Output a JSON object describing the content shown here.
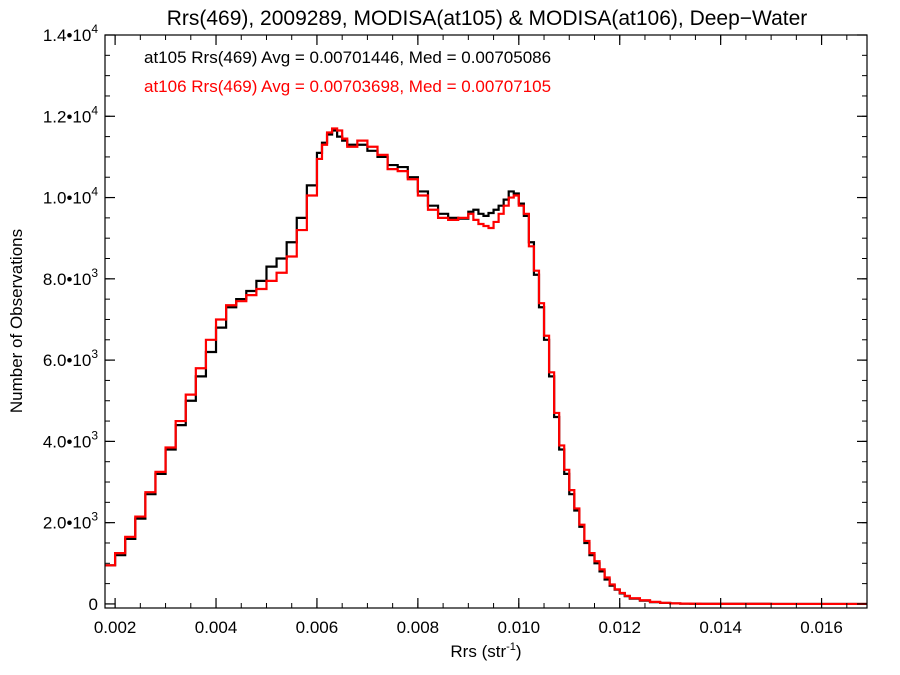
{
  "chart_data": {
    "type": "line",
    "step": true,
    "title": "Rrs(469), 2009289, MODISA(at105) & MODISA(at106), Deep−Water",
    "xlabel": "Rrs (str",
    "xlabel_sup": "-1",
    "xlabel_suffix": ")",
    "ylabel": "Number of Observations",
    "xlim": [
      0.0018,
      0.0169
    ],
    "ylim": [
      -100,
      14000
    ],
    "x_ticks": [
      {
        "value": 0.002,
        "label": "0.002"
      },
      {
        "value": 0.004,
        "label": "0.004"
      },
      {
        "value": 0.006,
        "label": "0.006"
      },
      {
        "value": 0.008,
        "label": "0.008"
      },
      {
        "value": 0.01,
        "label": "0.010"
      },
      {
        "value": 0.012,
        "label": "0.012"
      },
      {
        "value": 0.014,
        "label": "0.014"
      },
      {
        "value": 0.016,
        "label": "0.016"
      }
    ],
    "y_ticks": [
      {
        "value": 0,
        "mant": "0",
        "exp": ""
      },
      {
        "value": 2000,
        "mant": "2.0•10",
        "exp": "3"
      },
      {
        "value": 4000,
        "mant": "4.0•10",
        "exp": "3"
      },
      {
        "value": 6000,
        "mant": "6.0•10",
        "exp": "3"
      },
      {
        "value": 8000,
        "mant": "8.0•10",
        "exp": "3"
      },
      {
        "value": 10000,
        "mant": "1.0•10",
        "exp": "4"
      },
      {
        "value": 12000,
        "mant": "1.2•10",
        "exp": "4"
      },
      {
        "value": 14000,
        "mant": "1.4•10",
        "exp": "4"
      }
    ],
    "x_minor_step": 0.0005,
    "y_minor_step": 500,
    "annotations": [
      {
        "text": "at105 Rrs(469) Avg = 0.00701446, Med = 0.00705086",
        "color": "#000000"
      },
      {
        "text": "at106 Rrs(469) Avg = 0.00703698, Med = 0.00707105",
        "color": "#ff0000"
      }
    ],
    "series": [
      {
        "color": "#000000",
        "x": [
          0.0018,
          0.002,
          0.0022,
          0.0024,
          0.0026,
          0.0028,
          0.003,
          0.0032,
          0.0034,
          0.0036,
          0.0038,
          0.004,
          0.0042,
          0.0044,
          0.0046,
          0.0048,
          0.005,
          0.0052,
          0.0054,
          0.0056,
          0.0058,
          0.006,
          0.0061,
          0.0062,
          0.0063,
          0.0064,
          0.0065,
          0.0066,
          0.0068,
          0.007,
          0.0072,
          0.0074,
          0.0076,
          0.0078,
          0.008,
          0.0082,
          0.0084,
          0.0086,
          0.0088,
          0.009,
          0.0091,
          0.0092,
          0.0093,
          0.0094,
          0.0095,
          0.0096,
          0.0097,
          0.0098,
          0.0099,
          0.01,
          0.0101,
          0.0102,
          0.0103,
          0.0104,
          0.0105,
          0.0106,
          0.0107,
          0.0108,
          0.0109,
          0.011,
          0.0111,
          0.0112,
          0.0113,
          0.0114,
          0.0115,
          0.0116,
          0.0117,
          0.0118,
          0.0119,
          0.012,
          0.0121,
          0.0122,
          0.0124,
          0.0126,
          0.0128,
          0.013,
          0.0132,
          0.0134,
          0.0136,
          0.014,
          0.015,
          0.016,
          0.0169
        ],
        "values": [
          950,
          1200,
          1600,
          2100,
          2700,
          3200,
          3800,
          4400,
          5000,
          5600,
          6200,
          6800,
          7300,
          7500,
          7700,
          7950,
          8300,
          8500,
          8900,
          9500,
          10300,
          11100,
          11350,
          11550,
          11650,
          11500,
          11400,
          11300,
          11300,
          11150,
          11000,
          10800,
          10750,
          10500,
          10150,
          9800,
          9600,
          9500,
          9480,
          9650,
          9700,
          9600,
          9550,
          9620,
          9700,
          9800,
          9950,
          10150,
          10100,
          9850,
          9550,
          8900,
          8100,
          7300,
          6500,
          5600,
          4600,
          3800,
          3200,
          2700,
          2300,
          1900,
          1500,
          1200,
          1000,
          800,
          600,
          450,
          350,
          260,
          190,
          130,
          80,
          45,
          25,
          12,
          6,
          3,
          2,
          1,
          0,
          0,
          0
        ]
      },
      {
        "color": "#ff0000",
        "x": [
          0.0018,
          0.002,
          0.0022,
          0.0024,
          0.0026,
          0.0028,
          0.003,
          0.0032,
          0.0034,
          0.0036,
          0.0038,
          0.004,
          0.0042,
          0.0044,
          0.0046,
          0.0048,
          0.005,
          0.0052,
          0.0054,
          0.0056,
          0.0058,
          0.006,
          0.0061,
          0.0062,
          0.0063,
          0.0064,
          0.0065,
          0.0066,
          0.0068,
          0.007,
          0.0072,
          0.0074,
          0.0076,
          0.0078,
          0.008,
          0.0082,
          0.0084,
          0.0086,
          0.0088,
          0.009,
          0.0091,
          0.0092,
          0.0093,
          0.0094,
          0.0095,
          0.0096,
          0.0097,
          0.0098,
          0.0099,
          0.01,
          0.0101,
          0.0102,
          0.0103,
          0.0104,
          0.0105,
          0.0106,
          0.0107,
          0.0108,
          0.0109,
          0.011,
          0.0111,
          0.0112,
          0.0113,
          0.0114,
          0.0115,
          0.0116,
          0.0117,
          0.0118,
          0.0119,
          0.012,
          0.0121,
          0.0122,
          0.0124,
          0.0126,
          0.0128,
          0.013,
          0.0132,
          0.0134,
          0.0136,
          0.014,
          0.015,
          0.016,
          0.0169
        ],
        "values": [
          950,
          1250,
          1650,
          2150,
          2750,
          3250,
          3850,
          4500,
          5150,
          5800,
          6500,
          7000,
          7350,
          7450,
          7600,
          7750,
          7950,
          8150,
          8550,
          9200,
          10050,
          10950,
          11300,
          11600,
          11700,
          11650,
          11450,
          11250,
          11400,
          11250,
          11050,
          10700,
          10650,
          10450,
          10050,
          9700,
          9500,
          9450,
          9500,
          9600,
          9450,
          9350,
          9300,
          9250,
          9400,
          9600,
          9800,
          10000,
          10050,
          9800,
          9600,
          8800,
          8200,
          7400,
          6600,
          5700,
          4700,
          3900,
          3300,
          2800,
          2350,
          1950,
          1550,
          1250,
          1050,
          850,
          650,
          480,
          360,
          270,
          200,
          140,
          90,
          50,
          28,
          14,
          7,
          4,
          2,
          1,
          0,
          0,
          0
        ]
      }
    ]
  }
}
